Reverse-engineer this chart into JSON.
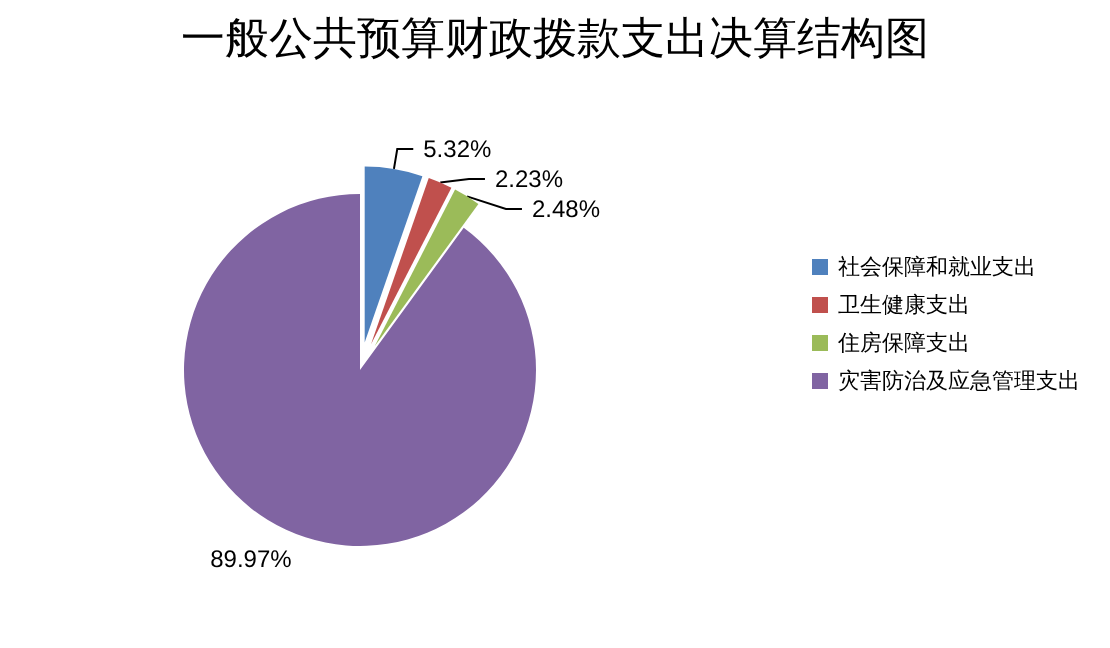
{
  "chart_data": {
    "type": "pie",
    "title": "一般公共预算财政拨款支出决算结构图",
    "categories": [
      "社会保障和就业支出",
      "卫生健康支出",
      "住房保障支出",
      "灾害防治及应急管理支出"
    ],
    "values": [
      5.32,
      2.23,
      2.48,
      89.97
    ],
    "colors": [
      "#4f81bd",
      "#c0504d",
      "#9bbb59",
      "#8064a2"
    ],
    "value_labels": [
      "5.32%",
      "2.23%",
      "2.48%",
      "89.97%"
    ],
    "legend": "right"
  }
}
